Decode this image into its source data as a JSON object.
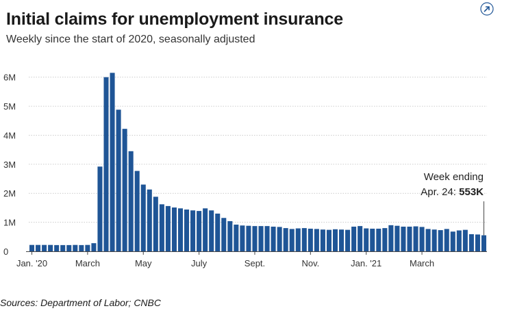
{
  "title": "Initial claims for unemployment insurance",
  "subtitle": "Weekly since the start of 2020, seasonally adjusted",
  "source": "Sources:  Department of Labor; CNBC",
  "icons": {
    "corner": "expand-icon"
  },
  "colors": {
    "bar": "#1f5596",
    "grid": "#bbbbbb",
    "axis": "#444444"
  },
  "annotation": {
    "line1": "Week ending",
    "line2_prefix": "Apr. 24: ",
    "line2_value": "553K"
  },
  "chart_data": {
    "type": "bar",
    "title": "Initial claims for unemployment insurance",
    "subtitle": "Weekly since the start of 2020, seasonally adjusted",
    "xlabel": "",
    "ylabel": "",
    "ylim": [
      0,
      6300000
    ],
    "grid": true,
    "y_ticks": [
      0,
      1000000,
      2000000,
      3000000,
      4000000,
      5000000,
      6000000
    ],
    "y_tick_labels": [
      "0",
      "1M",
      "2M",
      "3M",
      "4M",
      "5M",
      "6M"
    ],
    "x_ticks": [
      {
        "label": "Jan. '20",
        "week_index": 0
      },
      {
        "label": "March",
        "week_index": 9
      },
      {
        "label": "May",
        "week_index": 18
      },
      {
        "label": "July",
        "week_index": 27
      },
      {
        "label": "Sept.",
        "week_index": 36
      },
      {
        "label": "Nov.",
        "week_index": 45
      },
      {
        "label": "Jan. '21",
        "week_index": 54
      },
      {
        "label": "March",
        "week_index": 63
      }
    ],
    "series": [
      {
        "values": [
          220000,
          220000,
          220000,
          220000,
          215000,
          215000,
          215000,
          220000,
          215000,
          220000,
          280000,
          2920000,
          6000000,
          6150000,
          4880000,
          4220000,
          3450000,
          2770000,
          2300000,
          2130000,
          1880000,
          1620000,
          1560000,
          1510000,
          1480000,
          1440000,
          1410000,
          1390000,
          1480000,
          1410000,
          1300000,
          1150000,
          1040000,
          920000,
          890000,
          880000,
          870000,
          870000,
          870000,
          850000,
          840000,
          800000,
          770000,
          790000,
          800000,
          780000,
          770000,
          750000,
          740000,
          760000,
          750000,
          740000,
          850000,
          870000,
          790000,
          780000,
          780000,
          800000,
          900000,
          880000,
          850000,
          850000,
          860000,
          840000,
          770000,
          750000,
          730000,
          770000,
          680000,
          720000,
          740000,
          590000,
          580000,
          553000
        ]
      }
    ],
    "last_point": {
      "label": "Week ending Apr. 24",
      "value": 553000
    }
  }
}
